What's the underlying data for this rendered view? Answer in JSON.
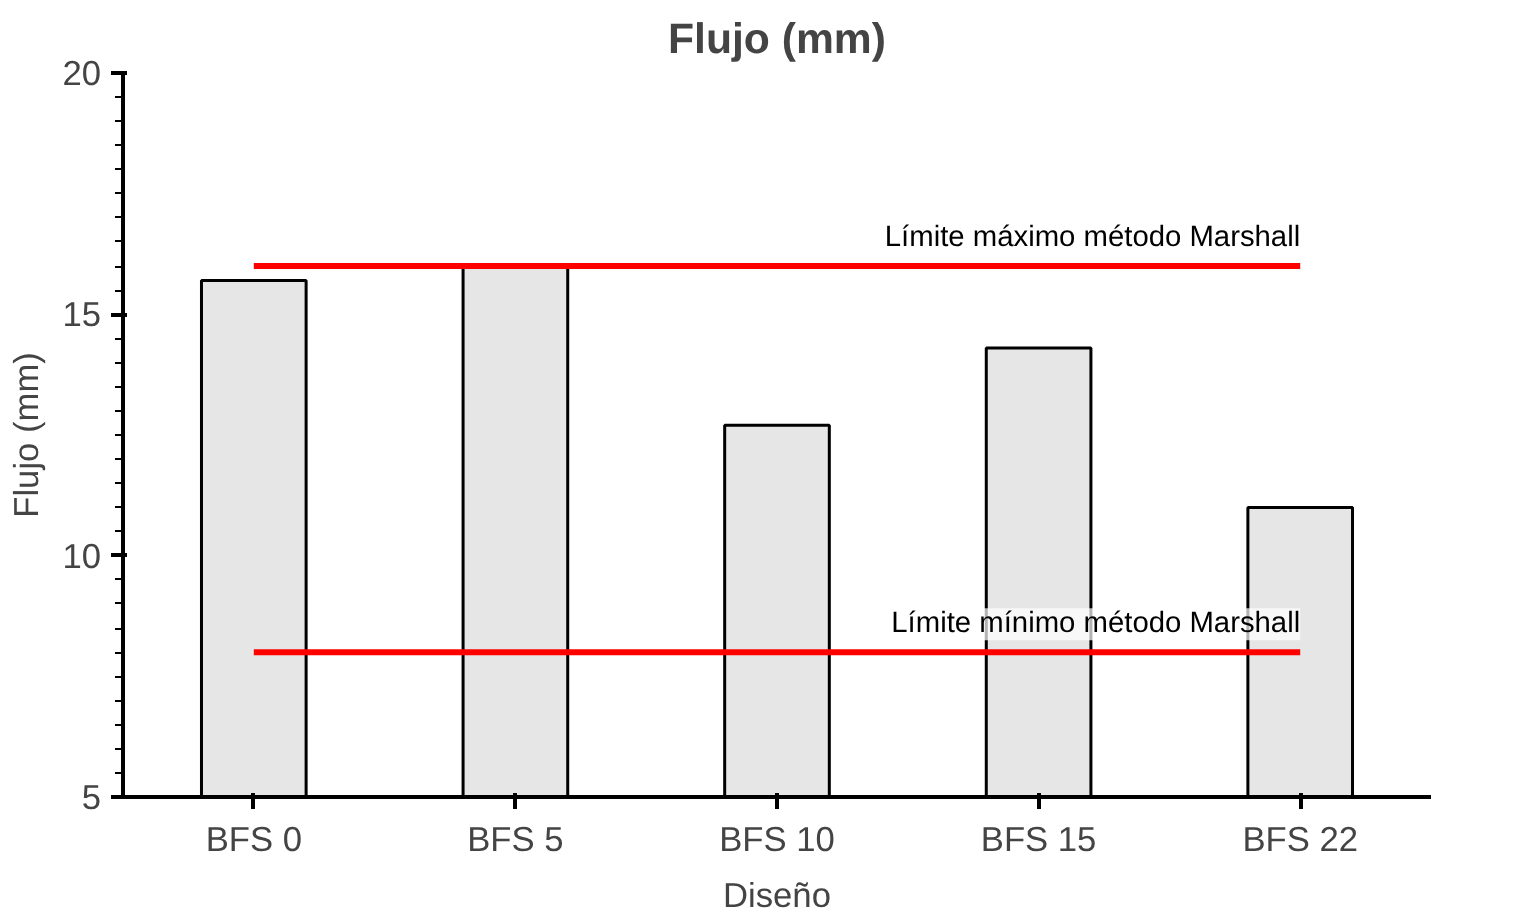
{
  "chart_data": {
    "type": "bar",
    "title": "Flujo (mm)",
    "xlabel": "Diseño",
    "ylabel": "Flujo (mm)",
    "categories": [
      "BFS 0",
      "BFS 5",
      "BFS 10",
      "BFS 15",
      "BFS 22"
    ],
    "values": [
      15.7,
      16.0,
      12.7,
      14.3,
      11.0
    ],
    "color": "#e6e6e6",
    "ylim": [
      5,
      20
    ],
    "yticks": [
      5,
      10,
      15,
      20
    ],
    "grid": false,
    "ref_lines": [
      {
        "axis": "y",
        "value": 16,
        "label": "Límite máximo método Marshall",
        "color": "#ff0000"
      },
      {
        "axis": "y",
        "value": 8,
        "label": "Límite mínimo método Marshall",
        "color": "#ff0000"
      }
    ]
  }
}
